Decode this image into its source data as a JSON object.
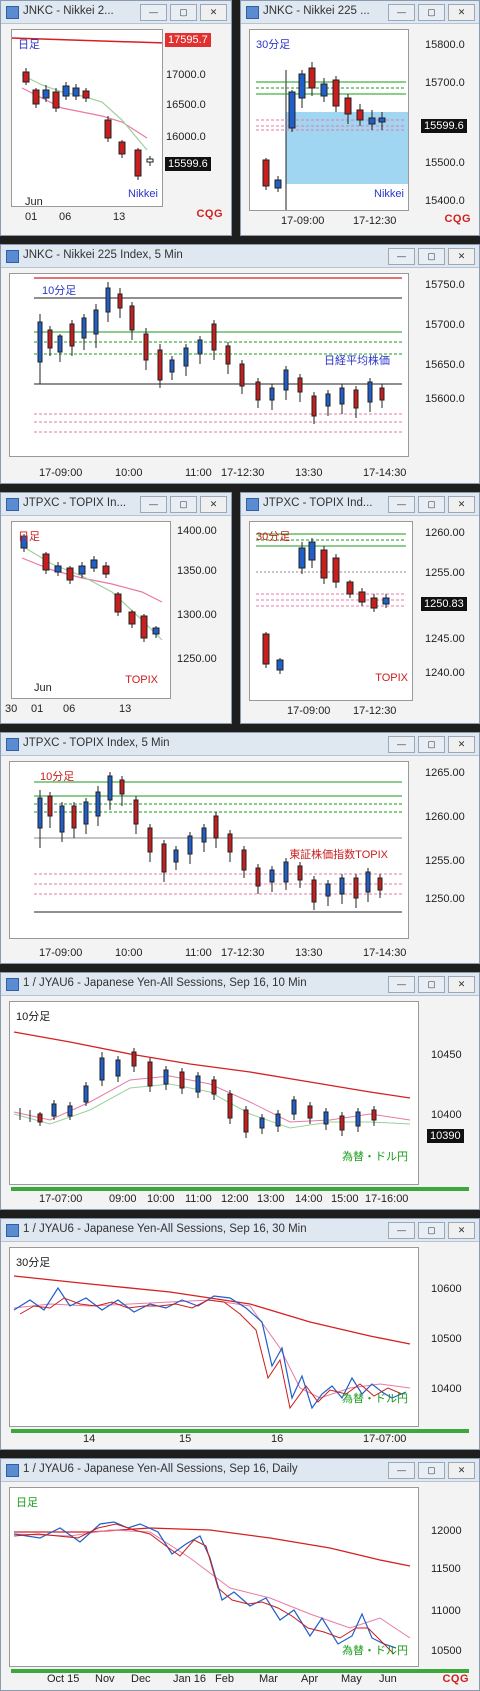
{
  "colors": {
    "accent": "#2a62c9",
    "up": "#1f5fc9",
    "down": "#c81e1e",
    "ma_red": "#d62020",
    "ma_pink": "#e87aa6",
    "ma_green": "#9dd09a"
  },
  "windows": [
    {
      "title": "JNKC - Nikkei 2...",
      "period": "日足",
      "corner": "Nikkei",
      "price": "17595.7",
      "price2": "15599.6",
      "yticks": [
        "17000.0",
        "16500.0",
        "16000.0",
        "15500.0"
      ],
      "xticks": [
        "Jun",
        "01",
        "06",
        "13"
      ]
    },
    {
      "title": "JNKC - Nikkei 225 ...",
      "period": "30分足",
      "corner": "Nikkei",
      "price": "15599.6",
      "yticks": [
        "15800.0",
        "15700.0",
        "15600.0",
        "15500.0",
        "15400.0"
      ],
      "xticks": [
        "17-09:00",
        "17-12:30"
      ]
    },
    {
      "title": "JNKC - Nikkei 225 Index, 5 Min",
      "period": "10分足",
      "corner": "日経平均株価",
      "yticks": [
        "15750.0",
        "15700.0",
        "15650.0",
        "15600.0"
      ],
      "xticks": [
        "17-09:00",
        "10:00",
        "11:00",
        "17-12:30",
        "13:30",
        "17-14:30"
      ]
    },
    {
      "title": "JTPXC - TOPIX In...",
      "period": "日足",
      "corner": "TOPIX",
      "yticks": [
        "1400.00",
        "1350.00",
        "1300.00",
        "1250.00"
      ],
      "xticks": [
        "30",
        "01",
        "06",
        "13"
      ],
      "xsub": "Jun"
    },
    {
      "title": "JTPXC - TOPIX Ind...",
      "period": "30分足",
      "corner": "TOPIX",
      "price": "1250.83",
      "yticks": [
        "1260.00",
        "1255.00",
        "1245.00",
        "1240.00"
      ],
      "xticks": [
        "17-09:00",
        "17-12:30"
      ]
    },
    {
      "title": "JTPXC - TOPIX Index, 5 Min",
      "period": "10分足",
      "corner": "東証株価指数TOPIX",
      "yticks": [
        "1265.00",
        "1260.00",
        "1255.00",
        "1250.00"
      ],
      "xticks": [
        "17-09:00",
        "10:00",
        "11:00",
        "17-12:30",
        "13:30",
        "17-14:30"
      ]
    },
    {
      "title": "1 / JYAU6 - Japanese Yen-All Sessions, Sep 16, 10 Min",
      "period": "10分足",
      "corner": "為替・ドル円",
      "price": "10390",
      "yticks": [
        "10450",
        "10400"
      ],
      "xticks": [
        "17-07:00",
        "09:00",
        "10:00",
        "11:00",
        "12:00",
        "13:00",
        "14:00",
        "15:00",
        "17-16:00"
      ]
    },
    {
      "title": "1 / JYAU6 - Japanese Yen-All Sessions, Sep 16, 30 Min",
      "period": "30分足",
      "corner": "為替・ドル円",
      "yticks": [
        "10600",
        "10500",
        "10400"
      ],
      "xticks": [
        "14",
        "15",
        "16",
        "17-07:00"
      ]
    },
    {
      "title": "1 / JYAU6 - Japanese Yen-All Sessions, Sep 16, Daily",
      "period": "日足",
      "corner": "為替・ドル円",
      "yticks": [
        "12000",
        "11500",
        "11000",
        "10500"
      ],
      "xticks": [
        "Oct 15",
        "Nov",
        "Dec",
        "Jan 16",
        "Feb",
        "Mar",
        "Apr",
        "May",
        "Jun"
      ]
    }
  ],
  "logo_text": "CQG"
}
